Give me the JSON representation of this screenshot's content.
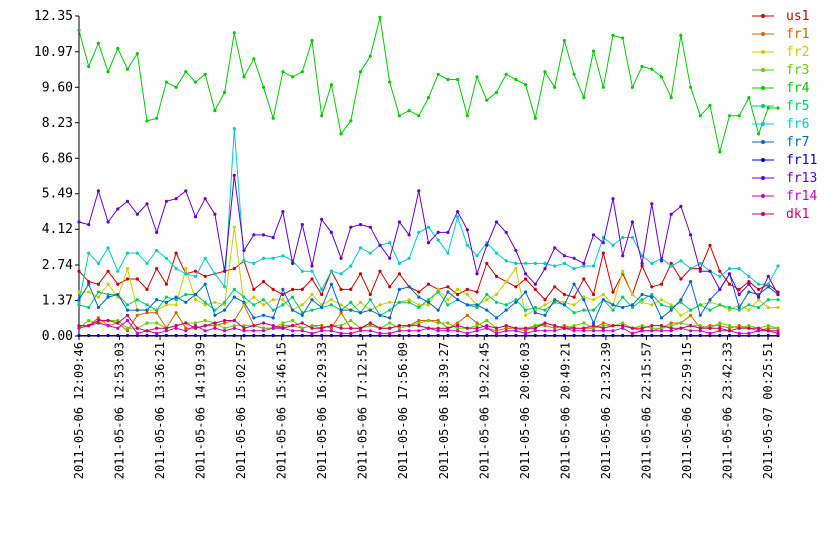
{
  "chart_data": {
    "type": "line",
    "title": "",
    "xlabel": "",
    "ylabel": "",
    "ylim": [
      0,
      12.35
    ],
    "grid": false,
    "legend_position": "top-right",
    "y_ticks": [
      "0.00",
      "1.37",
      "2.74",
      "4.12",
      "5.49",
      "6.86",
      "8.23",
      "9.60",
      "10.97",
      "12.35"
    ],
    "x_tick_labels": [
      "2011-05-06 12:09:46",
      "2011-05-06 12:53:03",
      "2011-05-06 13:36:21",
      "2011-05-06 14:19:39",
      "2011-05-06 15:02:57",
      "2011-05-06 15:46:15",
      "2011-05-06 16:29:33",
      "2011-05-06 17:12:51",
      "2011-05-06 17:56:09",
      "2011-05-06 18:39:27",
      "2011-05-06 19:22:45",
      "2011-05-06 20:06:03",
      "2011-05-06 20:49:21",
      "2011-05-06 21:32:39",
      "2011-05-06 22:15:57",
      "2011-05-06 22:59:15",
      "2011-05-06 23:42:33",
      "2011-05-07 00:25:51"
    ],
    "series": [
      {
        "name": "us1",
        "color": "#cc0000",
        "values": [
          2.5,
          2.1,
          2.0,
          2.5,
          2.0,
          2.2,
          2.2,
          1.8,
          2.6,
          2.0,
          3.2,
          2.4,
          2.5,
          2.3,
          2.4,
          2.5,
          2.6,
          2.9,
          1.8,
          2.1,
          1.8,
          1.6,
          1.8,
          1.8,
          2.2,
          1.6,
          2.5,
          1.8,
          1.8,
          2.4,
          1.6,
          2.5,
          1.9,
          2.4,
          1.9,
          1.7,
          2.0,
          1.8,
          1.9,
          1.6,
          1.8,
          1.7,
          2.8,
          2.3,
          2.1,
          1.9,
          2.2,
          1.8,
          1.4,
          1.9,
          1.6,
          1.5,
          2.2,
          1.6,
          3.2,
          1.7,
          2.4,
          1.6,
          2.7,
          1.9,
          2.0,
          2.8,
          2.2,
          2.6,
          2.6,
          3.5,
          2.5,
          2.0,
          1.8,
          2.1,
          1.8,
          2.0,
          1.7
        ]
      },
      {
        "name": "fr1",
        "color": "#cc6600",
        "values": [
          0.4,
          0.4,
          0.7,
          0.4,
          0.5,
          0.2,
          0.8,
          0.9,
          0.9,
          0.3,
          0.9,
          0.3,
          0.3,
          0.4,
          0.4,
          0.5,
          0.6,
          1.2,
          0.4,
          0.3,
          0.3,
          0.4,
          0.4,
          0.3,
          0.4,
          0.4,
          0.3,
          0.9,
          0.3,
          0.3,
          0.4,
          0.3,
          0.3,
          0.4,
          0.4,
          0.6,
          0.6,
          0.6,
          0.3,
          0.5,
          0.8,
          0.5,
          0.3,
          0.2,
          0.3,
          0.3,
          0.2,
          0.4,
          0.4,
          0.3,
          0.4,
          0.3,
          0.3,
          0.3,
          0.5,
          0.4,
          0.4,
          0.3,
          0.2,
          0.2,
          0.3,
          0.5,
          0.5,
          0.8,
          0.3,
          0.4,
          0.4,
          0.3,
          0.4,
          0.3,
          0.2,
          0.3,
          0.3
        ]
      },
      {
        "name": "fr2",
        "color": "#cccc00",
        "values": [
          1.7,
          1.7,
          1.5,
          2.0,
          1.5,
          2.6,
          1.0,
          1.0,
          1.0,
          1.2,
          1.2,
          2.6,
          1.4,
          1.2,
          1.3,
          1.2,
          4.2,
          1.2,
          1.5,
          1.2,
          1.4,
          1.4,
          1.0,
          1.2,
          1.6,
          1.2,
          1.4,
          1.2,
          1.0,
          1.3,
          1.0,
          1.2,
          1.3,
          1.3,
          1.4,
          1.2,
          1.2,
          1.8,
          1.4,
          1.8,
          1.6,
          1.2,
          1.4,
          1.6,
          2.1,
          2.6,
          0.8,
          1.0,
          1.2,
          1.4,
          1.3,
          1.2,
          1.5,
          1.4,
          1.6,
          1.2,
          2.5,
          1.6,
          1.3,
          1.2,
          1.4,
          1.2,
          0.8,
          1.0,
          1.2,
          1.3,
          1.2,
          1.0,
          1.2,
          1.0,
          1.4,
          1.1,
          1.1
        ]
      },
      {
        "name": "fr3",
        "color": "#66cc00",
        "values": [
          0.3,
          0.6,
          0.5,
          0.6,
          0.6,
          0.3,
          0.3,
          0.5,
          0.5,
          0.3,
          0.4,
          0.5,
          0.5,
          0.6,
          0.5,
          0.3,
          0.4,
          0.4,
          0.4,
          0.3,
          0.3,
          0.5,
          0.6,
          0.3,
          0.4,
          0.3,
          0.4,
          0.4,
          0.6,
          0.3,
          0.4,
          0.3,
          0.5,
          0.3,
          0.4,
          0.5,
          0.6,
          0.5,
          0.5,
          0.3,
          0.3,
          0.4,
          0.6,
          0.3,
          0.4,
          0.3,
          0.3,
          0.4,
          0.5,
          0.4,
          0.3,
          0.4,
          0.5,
          0.3,
          0.4,
          0.4,
          0.5,
          0.3,
          0.4,
          0.3,
          0.3,
          0.4,
          0.5,
          0.4,
          0.4,
          0.3,
          0.5,
          0.4,
          0.3,
          0.4,
          0.3,
          0.4,
          0.3
        ]
      },
      {
        "name": "fr4",
        "color": "#00cc00",
        "values": [
          11.8,
          10.4,
          11.3,
          10.2,
          11.1,
          10.3,
          10.9,
          8.3,
          8.4,
          9.8,
          9.6,
          10.2,
          9.8,
          10.1,
          8.7,
          9.4,
          11.7,
          10.0,
          10.7,
          9.6,
          8.4,
          10.2,
          10.0,
          10.2,
          11.4,
          8.5,
          9.7,
          7.8,
          8.3,
          10.2,
          10.8,
          12.3,
          9.8,
          8.5,
          8.7,
          8.5,
          9.2,
          10.1,
          9.9,
          9.9,
          8.5,
          10.0,
          9.1,
          9.4,
          10.1,
          9.9,
          9.7,
          8.4,
          10.2,
          9.6,
          11.4,
          10.1,
          9.2,
          11.0,
          9.6,
          11.6,
          11.5,
          9.6,
          10.4,
          10.3,
          10.0,
          9.2,
          11.6,
          9.6,
          8.5,
          8.9,
          7.1,
          8.5,
          8.5,
          9.2,
          7.8,
          8.8,
          8.8
        ]
      },
      {
        "name": "fr5",
        "color": "#00cc66",
        "values": [
          1.2,
          1.1,
          1.7,
          1.6,
          1.6,
          1.2,
          1.4,
          1.2,
          1.0,
          1.5,
          1.4,
          1.6,
          1.6,
          1.3,
          1.0,
          1.3,
          1.8,
          1.5,
          1.2,
          1.4,
          1.0,
          1.2,
          1.5,
          0.9,
          1.0,
          1.1,
          1.2,
          1.0,
          1.3,
          0.9,
          1.4,
          0.8,
          1.0,
          1.3,
          1.3,
          1.1,
          1.4,
          1.7,
          1.2,
          1.4,
          1.2,
          1.1,
          1.6,
          1.3,
          1.2,
          1.4,
          1.0,
          1.1,
          1.0,
          1.3,
          1.2,
          0.9,
          1.0,
          1.0,
          1.4,
          1.0,
          1.5,
          1.1,
          1.4,
          1.6,
          1.2,
          1.1,
          1.3,
          1.0,
          1.2,
          1.0,
          1.2,
          1.1,
          1.0,
          1.2,
          1.1,
          1.4,
          1.4
        ]
      },
      {
        "name": "fr6",
        "color": "#00cccc",
        "values": [
          1.3,
          3.2,
          2.8,
          3.4,
          2.5,
          3.2,
          3.2,
          2.8,
          3.3,
          3.0,
          2.6,
          2.4,
          2.3,
          3.0,
          2.4,
          1.9,
          8.0,
          2.9,
          2.8,
          3.0,
          3.0,
          3.1,
          2.9,
          2.5,
          2.5,
          1.8,
          2.5,
          2.4,
          2.7,
          3.4,
          3.2,
          3.5,
          3.6,
          2.8,
          3.0,
          4.0,
          4.2,
          3.7,
          3.2,
          4.6,
          3.5,
          3.1,
          3.6,
          3.2,
          2.9,
          2.8,
          2.8,
          2.8,
          2.8,
          2.7,
          2.8,
          2.6,
          2.7,
          2.7,
          3.8,
          3.5,
          3.8,
          3.8,
          3.1,
          2.8,
          3.0,
          2.7,
          2.9,
          2.6,
          2.8,
          2.5,
          2.3,
          2.6,
          2.6,
          2.3,
          2.0,
          2.0,
          2.7
        ]
      },
      {
        "name": "fr7",
        "color": "#0066cc",
        "values": [
          1.4,
          2.0,
          1.1,
          1.5,
          1.6,
          1.0,
          1.0,
          1.0,
          1.4,
          1.3,
          1.5,
          1.3,
          1.6,
          2.0,
          0.8,
          1.0,
          1.5,
          1.3,
          0.7,
          0.8,
          0.7,
          1.8,
          1.0,
          0.8,
          1.4,
          1.1,
          2.0,
          1.0,
          1.0,
          0.9,
          1.0,
          0.8,
          0.7,
          1.8,
          1.9,
          1.5,
          1.3,
          1.0,
          1.7,
          1.4,
          1.2,
          1.2,
          1.0,
          0.7,
          1.0,
          1.3,
          1.7,
          0.9,
          0.8,
          1.4,
          1.2,
          2.0,
          1.4,
          0.5,
          1.4,
          1.2,
          1.1,
          1.2,
          1.6,
          1.5,
          0.7,
          1.0,
          1.4,
          2.1,
          0.8,
          1.4,
          1.8,
          2.4,
          1.1,
          1.7,
          1.6,
          1.9,
          1.6
        ]
      },
      {
        "name": "fr11",
        "color": "#0000cc",
        "values": [
          0.02,
          0.02,
          0.02,
          0.02,
          0.02,
          0.02,
          0.02,
          0.02,
          0.02,
          0.02,
          0.02,
          0.02,
          0.02,
          0.02,
          0.02,
          0.02,
          0.02,
          0.02,
          0.02,
          0.02,
          0.02,
          0.02,
          0.02,
          0.02,
          0.02,
          0.02,
          0.02,
          0.02,
          0.02,
          0.02,
          0.02,
          0.02,
          0.02,
          0.02,
          0.02,
          0.02,
          0.02,
          0.02,
          0.02,
          0.02,
          0.02,
          0.02,
          0.02,
          0.02,
          0.02,
          0.02,
          0.02,
          0.02,
          0.02,
          0.02,
          0.02,
          0.02,
          0.02,
          0.02,
          0.02,
          0.02,
          0.02,
          0.02,
          0.02,
          0.02,
          0.02,
          0.02,
          0.02,
          0.02,
          0.02,
          0.02,
          0.02,
          0.02,
          0.02,
          0.02,
          0.02,
          0.02,
          0.02
        ]
      },
      {
        "name": "fr13",
        "color": "#6600cc",
        "values": [
          4.4,
          4.3,
          5.6,
          4.4,
          4.9,
          5.2,
          4.7,
          5.1,
          4.0,
          5.2,
          5.3,
          5.6,
          4.6,
          5.3,
          4.7,
          2.5,
          6.2,
          3.3,
          3.9,
          3.9,
          3.8,
          4.8,
          2.8,
          4.3,
          2.7,
          4.5,
          4.0,
          3.0,
          4.2,
          4.3,
          4.2,
          3.5,
          3.0,
          4.4,
          3.9,
          5.6,
          3.6,
          4.0,
          4.0,
          4.8,
          4.1,
          2.4,
          3.5,
          4.4,
          4.0,
          3.3,
          2.4,
          2.0,
          2.6,
          3.4,
          3.1,
          3.0,
          2.8,
          3.9,
          3.6,
          5.3,
          3.1,
          4.4,
          2.8,
          5.1,
          2.9,
          4.7,
          5.0,
          3.9,
          2.5,
          2.5,
          1.8,
          2.4,
          1.6,
          2.0,
          1.5,
          2.3,
          1.6
        ]
      },
      {
        "name": "fr14",
        "color": "#cc00cc",
        "values": [
          0.3,
          0.4,
          0.5,
          0.4,
          0.3,
          0.6,
          0.1,
          0.2,
          0.1,
          0.2,
          0.3,
          0.2,
          0.4,
          0.2,
          0.3,
          0.2,
          0.3,
          0.2,
          0.2,
          0.2,
          0.3,
          0.3,
          0.2,
          0.2,
          0.1,
          0.2,
          0.2,
          0.1,
          0.1,
          0.2,
          0.2,
          0.1,
          0.1,
          0.2,
          0.2,
          0.2,
          0.3,
          0.2,
          0.2,
          0.2,
          0.1,
          0.2,
          0.3,
          0.1,
          0.2,
          0.2,
          0.1,
          0.2,
          0.2,
          0.2,
          0.3,
          0.2,
          0.2,
          0.2,
          0.2,
          0.2,
          0.3,
          0.1,
          0.2,
          0.2,
          0.2,
          0.2,
          0.3,
          0.2,
          0.2,
          0.1,
          0.2,
          0.2,
          0.1,
          0.1,
          0.2,
          0.2,
          0.2
        ]
      },
      {
        "name": "dk1",
        "color": "#cc0066",
        "values": [
          0.4,
          0.4,
          0.6,
          0.6,
          0.5,
          0.8,
          0.3,
          0.2,
          0.3,
          0.3,
          0.4,
          0.5,
          0.3,
          0.4,
          0.5,
          0.6,
          0.6,
          0.3,
          0.4,
          0.5,
          0.4,
          0.3,
          0.4,
          0.5,
          0.3,
          0.3,
          0.4,
          0.3,
          0.3,
          0.3,
          0.5,
          0.3,
          0.3,
          0.4,
          0.4,
          0.4,
          0.3,
          0.3,
          0.3,
          0.4,
          0.3,
          0.3,
          0.4,
          0.3,
          0.4,
          0.3,
          0.3,
          0.3,
          0.5,
          0.4,
          0.3,
          0.3,
          0.3,
          0.4,
          0.3,
          0.4,
          0.4,
          0.3,
          0.3,
          0.4,
          0.4,
          0.3,
          0.3,
          0.4,
          0.3,
          0.3,
          0.3,
          0.2,
          0.3,
          0.3,
          0.3,
          0.2,
          0.1
        ]
      }
    ]
  }
}
